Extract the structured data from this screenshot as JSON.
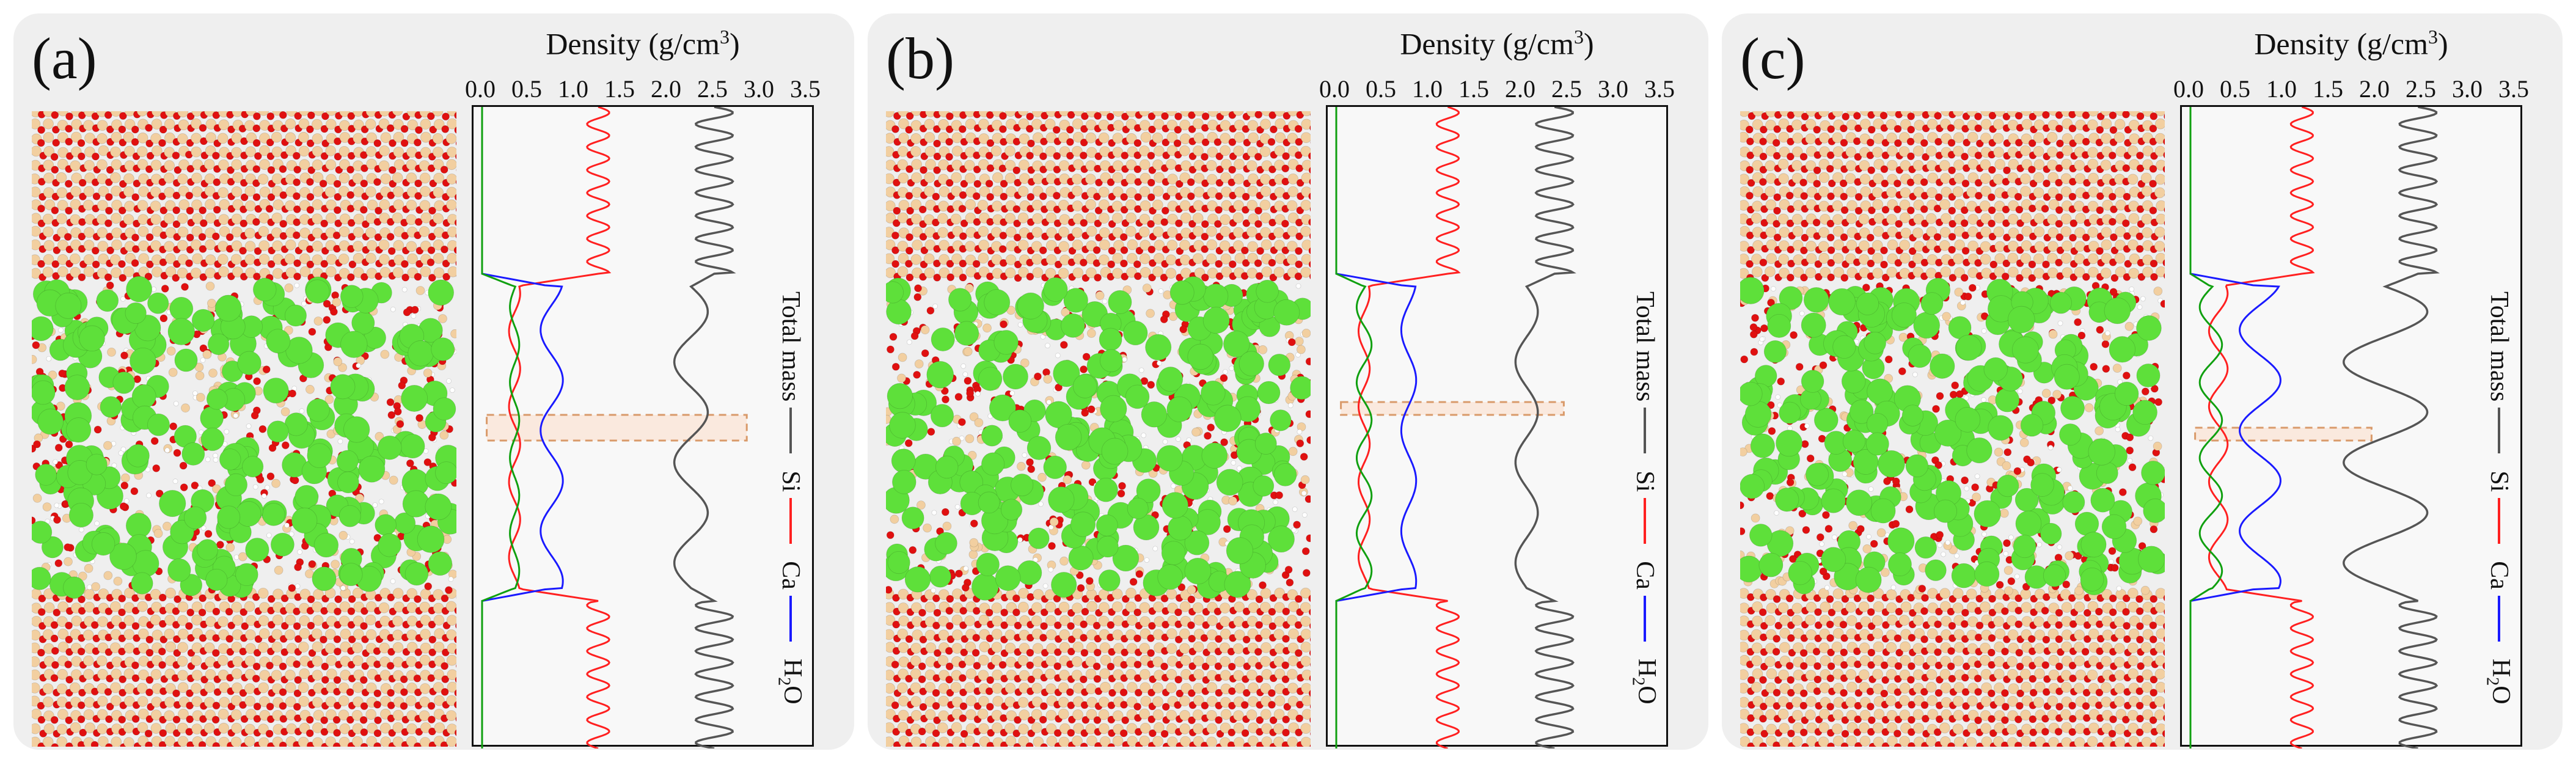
{
  "panels": [
    {
      "label": "(a)"
    },
    {
      "label": "(b)"
    },
    {
      "label": "(c)"
    }
  ],
  "axis": {
    "title_prefix": "Density (g/cm",
    "title_sup": "3",
    "title_suffix": ")",
    "ticks": [
      "0.0",
      "0.5",
      "1.0",
      "1.5",
      "2.0",
      "2.5",
      "3.0",
      "3.5"
    ]
  },
  "legend": {
    "total_mass": "Total mass",
    "si": "Si",
    "ca": "Ca",
    "h2o_main": "H",
    "h2o_sub": "2",
    "h2o_tail": "O"
  },
  "colors": {
    "total": "#555555",
    "si": "#ff2020",
    "ca": "#1a1aff",
    "h2o": "#10a010",
    "highlight_fill": "#fbe4d5",
    "highlight_border": "#d99a6a",
    "oxygen": "#e01010",
    "silicon": "#f2cfa0",
    "calcium": "#5ee03a",
    "hydrogen": "#ffffff"
  },
  "chart_data": [
    {
      "type": "line",
      "panel": "(a)",
      "xlabel": "Density (g/cm3)",
      "xlim": [
        0,
        3.5
      ],
      "ylim": [
        0,
        1
      ],
      "series": [
        {
          "name": "Total mass",
          "baseline": 2.5,
          "amplitude": 0.2,
          "channel_mean": 2.25,
          "channel_amplitude": 0.18
        },
        {
          "name": "Si",
          "baseline": 1.25,
          "amplitude": 0.12,
          "channel_mean": 0.35,
          "channel_amplitude": 0.06
        },
        {
          "name": "Ca",
          "baseline": 0.0,
          "amplitude": 0.0,
          "channel_mean": 0.75,
          "channel_amplitude": 0.12
        },
        {
          "name": "H2O",
          "baseline": 0.0,
          "amplitude": 0.0,
          "channel_mean": 0.35,
          "channel_amplitude": 0.05
        }
      ],
      "channel_range": [
        0.28,
        0.75
      ],
      "highlight_box": {
        "density_range": [
          0.05,
          2.85
        ],
        "height_range": [
          0.48,
          0.52
        ]
      }
    },
    {
      "type": "line",
      "panel": "(b)",
      "xlabel": "Density (g/cm3)",
      "xlim": [
        0,
        3.5
      ],
      "ylim": [
        0,
        1
      ],
      "series": [
        {
          "name": "Total mass",
          "baseline": 2.35,
          "amplitude": 0.2,
          "channel_mean": 2.05,
          "channel_amplitude": 0.12
        },
        {
          "name": "Si",
          "baseline": 1.2,
          "amplitude": 0.12,
          "channel_mean": 0.3,
          "channel_amplitude": 0.06
        },
        {
          "name": "Ca",
          "baseline": 0.0,
          "amplitude": 0.0,
          "channel_mean": 0.78,
          "channel_amplitude": 0.08
        },
        {
          "name": "H2O",
          "baseline": 0.0,
          "amplitude": 0.0,
          "channel_mean": 0.3,
          "channel_amplitude": 0.08
        }
      ],
      "channel_range": [
        0.28,
        0.75
      ],
      "highlight_box": {
        "density_range": [
          0.05,
          2.45
        ],
        "height_range": [
          0.46,
          0.48
        ]
      }
    },
    {
      "type": "line",
      "panel": "(c)",
      "xlabel": "Density (g/cm3)",
      "xlim": [
        0,
        3.5
      ],
      "ylim": [
        0,
        1
      ],
      "series": [
        {
          "name": "Total mass",
          "baseline": 2.45,
          "amplitude": 0.2,
          "channel_mean": 2.1,
          "channel_amplitude": 0.45
        },
        {
          "name": "Si",
          "baseline": 1.2,
          "amplitude": 0.12,
          "channel_mean": 0.3,
          "channel_amplitude": 0.1
        },
        {
          "name": "Ca",
          "baseline": 0.0,
          "amplitude": 0.0,
          "channel_mean": 0.75,
          "channel_amplitude": 0.22
        },
        {
          "name": "H2O",
          "baseline": 0.0,
          "amplitude": 0.0,
          "channel_mean": 0.22,
          "channel_amplitude": 0.12
        }
      ],
      "channel_range": [
        0.28,
        0.75
      ],
      "highlight_box": {
        "density_range": [
          0.05,
          1.95
        ],
        "height_range": [
          0.5,
          0.52
        ]
      }
    }
  ]
}
